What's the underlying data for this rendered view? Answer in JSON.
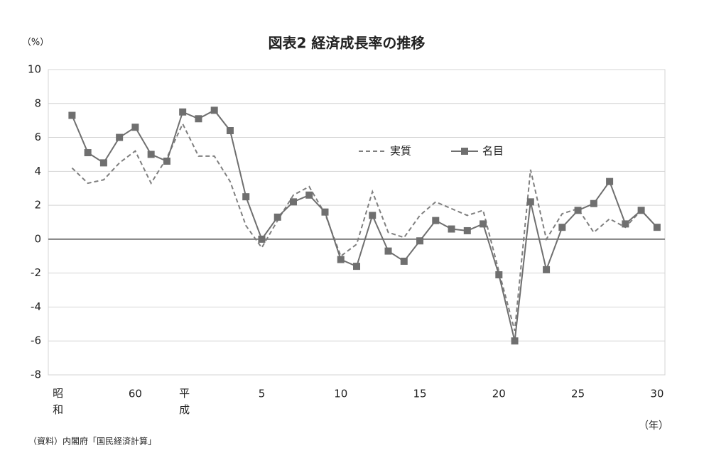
{
  "chart_data": {
    "type": "line",
    "title": "図表2  経済成長率の推移",
    "y_unit": "（%）",
    "x_unit": "（年）",
    "source": "（資料）内閣府「国民経済計算」",
    "categories": [
      "昭和",
      null,
      null,
      null,
      null,
      "60",
      null,
      null,
      "平成",
      null,
      null,
      null,
      null,
      "5",
      null,
      null,
      null,
      null,
      "10",
      null,
      null,
      null,
      null,
      "15",
      null,
      null,
      null,
      null,
      "20",
      null,
      null,
      null,
      null,
      "25",
      null,
      null,
      null,
      null,
      "30"
    ],
    "series": [
      {
        "name": "実質",
        "color": "#7f7f7f",
        "dashed": true,
        "marker": false,
        "values": [
          null,
          4.2,
          3.3,
          3.5,
          4.5,
          5.2,
          3.3,
          4.8,
          6.8,
          4.9,
          4.9,
          3.4,
          0.8,
          -0.5,
          1.1,
          2.6,
          3.1,
          1.5,
          -1.0,
          -0.3,
          2.8,
          0.4,
          0.1,
          1.4,
          2.2,
          1.8,
          1.4,
          1.7,
          -1.9,
          -5.4,
          4.1,
          0.0,
          1.5,
          1.8,
          0.4,
          1.2,
          0.7,
          1.7,
          0.7
        ]
      },
      {
        "name": "名目",
        "color": "#6f6f6f",
        "dashed": false,
        "marker": true,
        "values": [
          null,
          7.3,
          5.1,
          4.5,
          6.0,
          6.6,
          5.0,
          4.6,
          7.5,
          7.1,
          7.6,
          6.4,
          2.5,
          0.0,
          1.3,
          2.2,
          2.6,
          1.6,
          -1.2,
          -1.6,
          1.4,
          -0.7,
          -1.3,
          -0.1,
          1.1,
          0.6,
          0.5,
          0.9,
          -2.1,
          -6.0,
          2.2,
          -1.8,
          0.7,
          1.7,
          2.1,
          3.4,
          0.9,
          1.7,
          0.7
        ]
      }
    ],
    "ylim": [
      -8,
      10
    ],
    "yticks": [
      -8,
      -6,
      -4,
      -2,
      0,
      2,
      4,
      6,
      8,
      10
    ],
    "grid": true
  }
}
